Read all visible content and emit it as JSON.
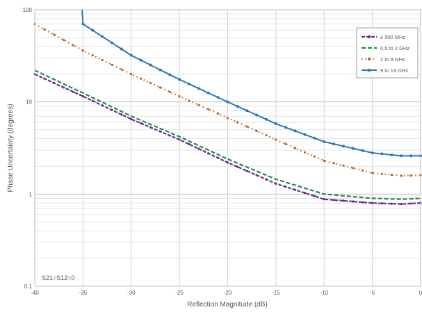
{
  "chart_data": {
    "type": "line",
    "title": "",
    "xlabel": "Reflection Magnitude (dB)",
    "ylabel": "Phase Uncertainty (degrees)",
    "xlim": [
      -40,
      0
    ],
    "ylim": [
      0.1,
      100
    ],
    "yscale": "log",
    "grid": true,
    "legend_position": "top-right",
    "x_ticks": [
      -40,
      -35,
      -30,
      -25,
      -20,
      -15,
      -10,
      -5,
      0
    ],
    "x_tick_labels": [
      "-40",
      "-35",
      "-30",
      "-25",
      "-20",
      "-15",
      "-10",
      "-5",
      "0"
    ],
    "y_ticks": [
      0.1,
      1,
      10,
      100
    ],
    "y_tick_labels": [
      "0.1",
      "1",
      "10",
      "100"
    ],
    "annotation": "S21=S12=0",
    "x": [
      -40,
      -35,
      -30,
      -25,
      -20,
      -15,
      -10,
      -5,
      -2,
      0
    ],
    "series": [
      {
        "name": "≤ 500 MHz",
        "color": "#6a2c91",
        "dash": "5,2",
        "marker": "dot",
        "values": [
          20,
          11.5,
          6.5,
          3.9,
          2.2,
          1.3,
          0.88,
          0.8,
          0.78,
          0.8
        ]
      },
      {
        "name": "0.5 to 2 GHz",
        "color": "#1e8a47",
        "dash": "6,3",
        "marker": "dash",
        "values": [
          22,
          12.5,
          7.0,
          4.2,
          2.4,
          1.45,
          1.0,
          0.9,
          0.88,
          0.9
        ]
      },
      {
        "name": "2 to 9 GHz",
        "color": "#c0601c",
        "dash": "1.5,4",
        "marker": "dot",
        "values": [
          70,
          36,
          20,
          11.5,
          6.7,
          3.9,
          2.3,
          1.7,
          1.58,
          1.6
        ]
      },
      {
        "name": "9 to 18 GHz",
        "color": "#2e77b5",
        "dash": "",
        "marker": "circle",
        "values": [
          null,
          70,
          32,
          17.5,
          10,
          5.8,
          3.7,
          2.8,
          2.6,
          2.6
        ]
      }
    ]
  }
}
